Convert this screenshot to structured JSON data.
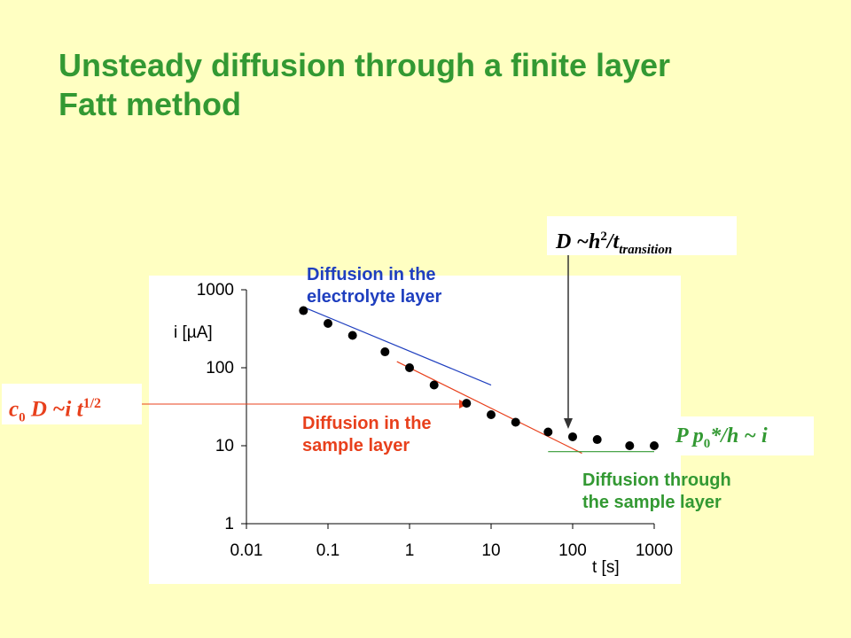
{
  "slide": {
    "title_line1": "Unsteady diffusion through a finite layer",
    "title_line2": "Fatt method",
    "title_color": "#339933",
    "background": "#ffffc2"
  },
  "annotations": {
    "electrolyte_line1": "Diffusion in the",
    "electrolyte_line2": "electrolyte layer",
    "sample_line1": "Diffusion in the",
    "sample_line2": "sample layer",
    "through_line1": "Diffusion through",
    "through_line2": "the sample layer",
    "eq_left": {
      "c": "c",
      "sub0": "0",
      "rest": " D ~i t",
      "sup": "1/2"
    },
    "eq_top": {
      "base": "D ~h",
      "sup": "2",
      "mid": "/t",
      "sub": "transition"
    },
    "eq_right": {
      "base": "P p",
      "sub": "0",
      "rest": "*/h ~ i"
    },
    "colors": {
      "blue": "#1f3fbf",
      "red": "#e8401c",
      "green": "#339933",
      "arrow": "#333333"
    }
  },
  "chart_data": {
    "type": "scatter",
    "xscale": "log",
    "yscale": "log",
    "xlim": [
      0.01,
      1000
    ],
    "ylim": [
      1,
      1000
    ],
    "x_ticks": [
      "0.01",
      "0.1",
      "1",
      "10",
      "100",
      "1000"
    ],
    "y_ticks": [
      "1",
      "10",
      "100",
      "1000"
    ],
    "xlabel": "t [s]",
    "ylabel": "i [µA]",
    "grid": false,
    "marker_color": "#000000",
    "points": [
      {
        "x": 0.05,
        "y": 540
      },
      {
        "x": 0.1,
        "y": 370
      },
      {
        "x": 0.2,
        "y": 260
      },
      {
        "x": 0.5,
        "y": 160
      },
      {
        "x": 1,
        "y": 100
      },
      {
        "x": 2,
        "y": 60
      },
      {
        "x": 5,
        "y": 35
      },
      {
        "x": 10,
        "y": 25
      },
      {
        "x": 20,
        "y": 20
      },
      {
        "x": 50,
        "y": 15
      },
      {
        "x": 100,
        "y": 13
      },
      {
        "x": 200,
        "y": 12
      },
      {
        "x": 500,
        "y": 10
      },
      {
        "x": 1000,
        "y": 10
      }
    ],
    "fit_lines": [
      {
        "color": "#1f3fbf",
        "from": [
          0.05,
          600
        ],
        "to": [
          10,
          60
        ]
      },
      {
        "color": "#e8401c",
        "from": [
          0.7,
          120
        ],
        "to": [
          130,
          8
        ]
      },
      {
        "color": "#339933",
        "from": [
          50,
          8.4
        ],
        "to": [
          1000,
          8.4
        ]
      }
    ]
  }
}
